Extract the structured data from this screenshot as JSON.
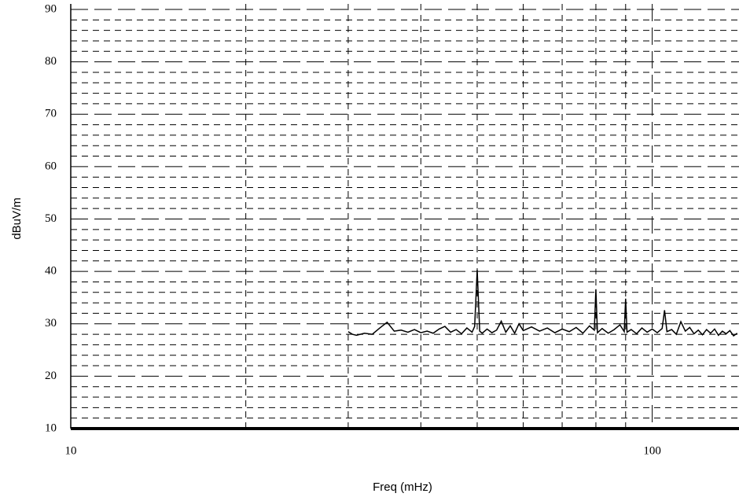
{
  "chart_data": {
    "type": "line",
    "xlabel": "Freq (mHz)",
    "ylabel": "dBuV/m",
    "xscale": "log",
    "color": "#000000",
    "grid": true,
    "xlim": [
      10,
      141
    ],
    "xticks": [
      10,
      100
    ],
    "x_minor_ticks": [
      20,
      30,
      40,
      50,
      60,
      70,
      80,
      90
    ],
    "ylim": [
      10,
      90
    ],
    "yticks": [
      10,
      20,
      30,
      40,
      50,
      60,
      70,
      80,
      90
    ],
    "y_minor_ticks": [
      12,
      14,
      16,
      18,
      22,
      24,
      26,
      28,
      32,
      34,
      36,
      38,
      42,
      44,
      46,
      48,
      52,
      54,
      56,
      58,
      62,
      64,
      66,
      68,
      72,
      74,
      76,
      78,
      82,
      84,
      86,
      88
    ],
    "x": [
      30,
      30.5,
      31,
      32,
      33,
      34,
      35,
      36,
      37,
      38,
      39,
      40,
      41,
      42,
      43,
      44,
      45,
      46,
      47,
      48,
      49,
      49.5,
      50,
      50.5,
      51,
      52,
      53,
      54,
      55,
      56,
      57,
      58,
      59,
      60,
      62,
      64,
      66,
      68,
      70,
      72,
      74,
      76,
      78,
      79.5,
      80,
      80.5,
      82,
      84,
      86,
      88,
      89.5,
      90,
      90.5,
      92,
      94,
      96,
      98,
      100,
      102,
      104,
      105,
      106,
      108,
      110,
      112,
      114,
      116,
      118,
      120,
      122,
      124,
      126,
      128,
      130,
      132,
      134,
      136,
      138,
      140
    ],
    "values": [
      28.5,
      28,
      27.8,
      28.2,
      28,
      29.2,
      30.3,
      28.6,
      28.8,
      28.4,
      28.9,
      28.3,
      28.6,
      28.2,
      29,
      29.5,
      28.4,
      28.9,
      28.1,
      29.2,
      28.4,
      29.5,
      40.3,
      28.6,
      28.2,
      29,
      28.3,
      28.8,
      30.5,
      28.4,
      29.6,
      28.2,
      30,
      28.7,
      29.4,
      28.6,
      29.2,
      28.3,
      29,
      28.5,
      29.3,
      28.2,
      29.6,
      28.8,
      36.6,
      28.3,
      29.1,
      28.2,
      28.9,
      29.8,
      28.5,
      34.8,
      28.4,
      28.9,
      28.1,
      29.2,
      28.4,
      29,
      28.3,
      29.1,
      32.6,
      28.5,
      28.9,
      28,
      30.4,
      28.6,
      29.3,
      28.1,
      28.8,
      27.9,
      28.9,
      28.2,
      29,
      27.8,
      28.6,
      28.1,
      28.7,
      27.7,
      28.2
    ]
  }
}
